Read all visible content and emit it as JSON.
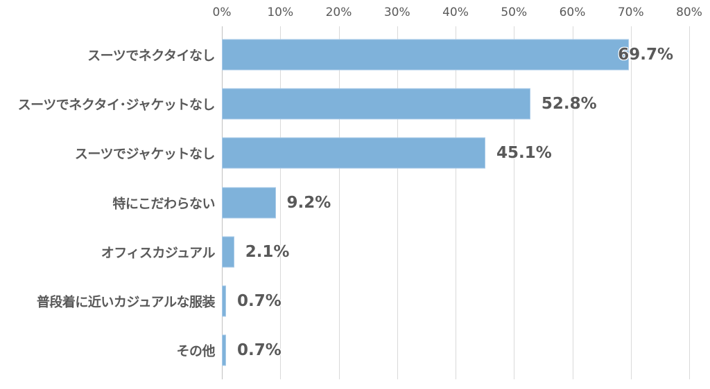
{
  "chart_data": {
    "type": "bar",
    "orientation": "horizontal",
    "title": "",
    "xlabel": "",
    "ylabel": "",
    "xlim": [
      0,
      80
    ],
    "x_ticks": [
      "0%",
      "10%",
      "20%",
      "30%",
      "40%",
      "50%",
      "60%",
      "70%",
      "80%"
    ],
    "grid": true,
    "legend": null,
    "categories": [
      "スーツでネクタイなし",
      "スーツでネクタイ･ジャケットなし",
      "スーツでジャケットなし",
      "特にこだわらない",
      "オフィスカジュアル",
      "普段着に近いカジュアルな服装",
      "その他"
    ],
    "values": [
      69.7,
      52.8,
      45.1,
      9.2,
      2.1,
      0.7,
      0.7
    ],
    "value_labels": [
      "69.7%",
      "52.8%",
      "45.1%",
      "9.2%",
      "2.1%",
      "0.7%",
      "0.7%"
    ],
    "bar_color": "#7fb2da",
    "text_color": "#595959",
    "grid_color": "#d9d9d9"
  }
}
